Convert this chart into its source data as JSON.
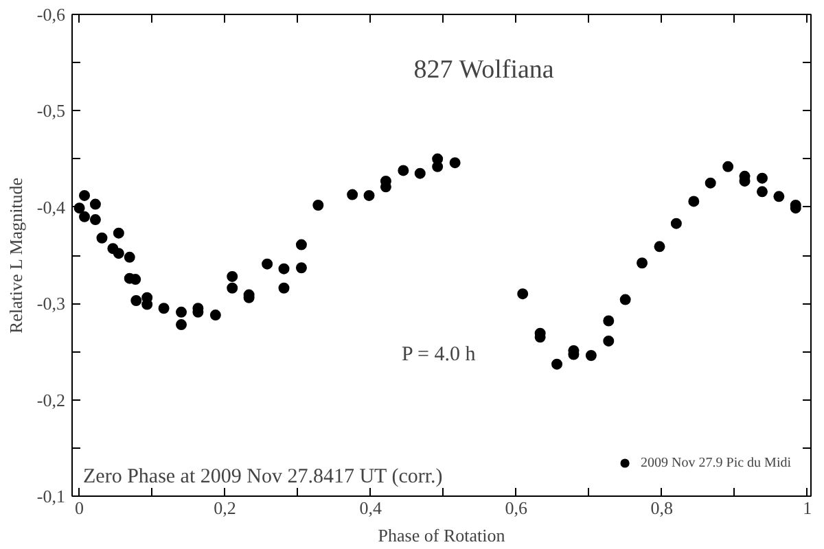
{
  "chart_data": {
    "type": "scatter",
    "title": "827 Wolfiana",
    "xlabel": "Phase of Rotation",
    "ylabel": "Relative L Magnitude",
    "xlim": [
      -0.01,
      1.005
    ],
    "ylim": [
      -0.1,
      -0.6
    ],
    "xticks": [
      {
        "value": 0,
        "label": "0"
      },
      {
        "value": 0.1,
        "label": null
      },
      {
        "value": 0.2,
        "label": "0,2"
      },
      {
        "value": 0.3,
        "label": null
      },
      {
        "value": 0.4,
        "label": "0,4"
      },
      {
        "value": 0.5,
        "label": null
      },
      {
        "value": 0.6,
        "label": "0,6"
      },
      {
        "value": 0.7,
        "label": null
      },
      {
        "value": 0.8,
        "label": "0,8"
      },
      {
        "value": 0.9,
        "label": null
      },
      {
        "value": 1,
        "label": "1"
      }
    ],
    "yticks": [
      {
        "value": -0.6,
        "label": "-0,6"
      },
      {
        "value": -0.55,
        "label": null
      },
      {
        "value": -0.5,
        "label": "-0,5"
      },
      {
        "value": -0.45,
        "label": null
      },
      {
        "value": -0.4,
        "label": "-0,4"
      },
      {
        "value": -0.35,
        "label": null
      },
      {
        "value": -0.3,
        "label": "-0,3"
      },
      {
        "value": -0.25,
        "label": null
      },
      {
        "value": -0.2,
        "label": "-0,2"
      },
      {
        "value": -0.15,
        "label": null
      },
      {
        "value": -0.1,
        "label": "-0,1"
      }
    ],
    "marker": "circle",
    "grid": false,
    "legend": "bottom right",
    "annotations": [
      "P = 4.0 h",
      "Zero Phase at 2009 Nov 27.8417 UT (corr.)"
    ],
    "series": [
      {
        "name": "2009 Nov 27.9 Pic du Midi",
        "color": "#000000",
        "x": [
          0,
          0.007,
          0.007,
          0.022,
          0.022,
          0.031,
          0.046,
          0.054,
          0.054,
          0.069,
          0.069,
          0.077,
          0.078,
          0.093,
          0.093,
          0.116,
          0.14,
          0.14,
          0.163,
          0.163,
          0.187,
          0.21,
          0.21,
          0.233,
          0.233,
          0.258,
          0.281,
          0.281,
          0.305,
          0.305,
          0.328,
          0.375,
          0.398,
          0.421,
          0.421,
          0.445,
          0.468,
          0.492,
          0.492,
          0.516,
          0.609,
          0.633,
          0.633,
          0.656,
          0.679,
          0.679,
          0.703,
          0.727,
          0.727,
          0.75,
          0.773,
          0.797,
          0.82,
          0.844,
          0.867,
          0.891,
          0.914,
          0.914,
          0.938,
          0.938,
          0.961,
          0.984,
          0.984
        ],
        "values": [
          -0.399,
          -0.412,
          -0.39,
          -0.403,
          -0.387,
          -0.368,
          -0.357,
          -0.373,
          -0.352,
          -0.348,
          -0.326,
          -0.325,
          -0.303,
          -0.306,
          -0.299,
          -0.295,
          -0.291,
          -0.278,
          -0.295,
          -0.291,
          -0.288,
          -0.328,
          -0.316,
          -0.309,
          -0.306,
          -0.341,
          -0.336,
          -0.316,
          -0.361,
          -0.337,
          -0.402,
          -0.413,
          -0.412,
          -0.427,
          -0.421,
          -0.438,
          -0.435,
          -0.45,
          -0.442,
          -0.446,
          -0.31,
          -0.269,
          -0.265,
          -0.237,
          -0.251,
          -0.247,
          -0.246,
          -0.282,
          -0.261,
          -0.304,
          -0.342,
          -0.359,
          -0.383,
          -0.406,
          -0.425,
          -0.442,
          -0.432,
          -0.427,
          -0.43,
          -0.416,
          -0.411,
          -0.402,
          -0.399
        ]
      }
    ]
  }
}
